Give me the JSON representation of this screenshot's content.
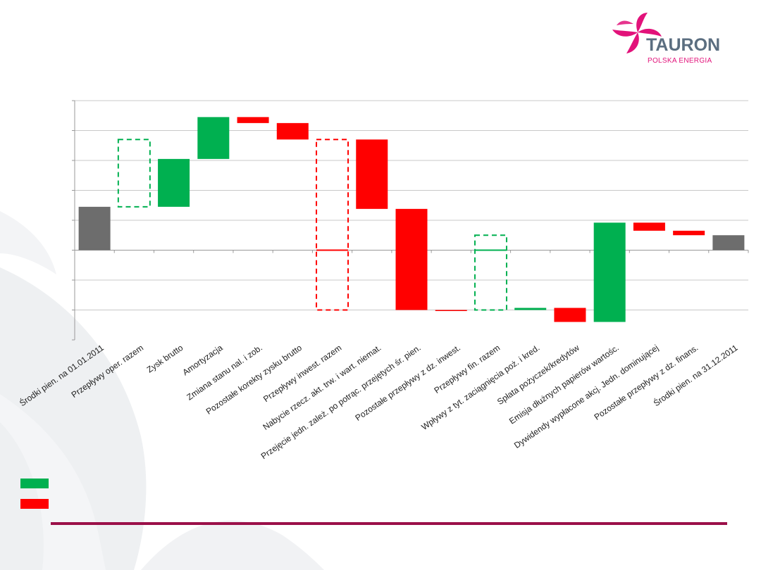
{
  "logo": {
    "name": "TAURON",
    "subtitle": "POLSKA ENERGIA"
  },
  "colors": {
    "increase": "#00b050",
    "decrease": "#ff0000",
    "total": "#6d6d6d",
    "grid": "#c8c8c8",
    "rule": "#9b1049",
    "brand": "#e2127a"
  },
  "legend": {
    "increase_label": "",
    "decrease_label": ""
  },
  "chart_data": {
    "type": "waterfall",
    "title": "",
    "xlabel": "",
    "ylabel": "",
    "ylim": [
      -3,
      5
    ],
    "grid": true,
    "y_ticks": [
      -3,
      -2,
      -1,
      0,
      1,
      2,
      3,
      4,
      5
    ],
    "y_tick_labels_visible": false,
    "categories": [
      "Środki pien. na 01.01.2011",
      "Przepływy oper. razem",
      "Zysk brutto",
      "Amortyzacja",
      "Zmiana stanu nal. i zob.",
      "Pozostałe korekty zysku brutto",
      "Przepływy inwest. razem",
      "Nabycie rzecz. akt. trw. i wart. niemat.",
      "Przejęcie jedn. zależ. po potrąc. przejętych śr. pien.",
      "Pozostałe przepływy z dz. inwest.",
      "Przepływy fin. razem",
      "Wpływy z tyt. zaciągnięcia poż. i kred.",
      "Spłata pożyczek/kredytów",
      "Emisja dłużnych papierów wartośc.",
      "Dywidendy wypłacone akcj. Jedn. dominującej",
      "Pozostałe przepływy z dz. finans.",
      "Środki pien. na 31.12.2011"
    ],
    "kinds": [
      "total",
      "subtotal",
      "increase",
      "increase",
      "decrease",
      "decrease",
      "subtotal",
      "decrease",
      "decrease",
      "decrease",
      "subtotal",
      "increase",
      "decrease",
      "increase",
      "decrease",
      "decrease",
      "total"
    ],
    "start": [
      0,
      1.45,
      1.45,
      3.05,
      4.45,
      4.25,
      3.7,
      3.7,
      1.38,
      -2.0,
      -2.0,
      -2.0,
      -1.93,
      -2.4,
      0.92,
      0.65,
      0
    ],
    "end": [
      1.45,
      3.7,
      3.05,
      4.45,
      4.25,
      3.7,
      -2.0,
      1.38,
      -2.0,
      -2.02,
      0.5,
      -1.93,
      -2.4,
      0.92,
      0.65,
      0.5,
      0.5
    ],
    "net_line": [
      null,
      null,
      null,
      null,
      null,
      null,
      0.0,
      null,
      null,
      null,
      0.0,
      null,
      null,
      null,
      null,
      null,
      null
    ]
  }
}
